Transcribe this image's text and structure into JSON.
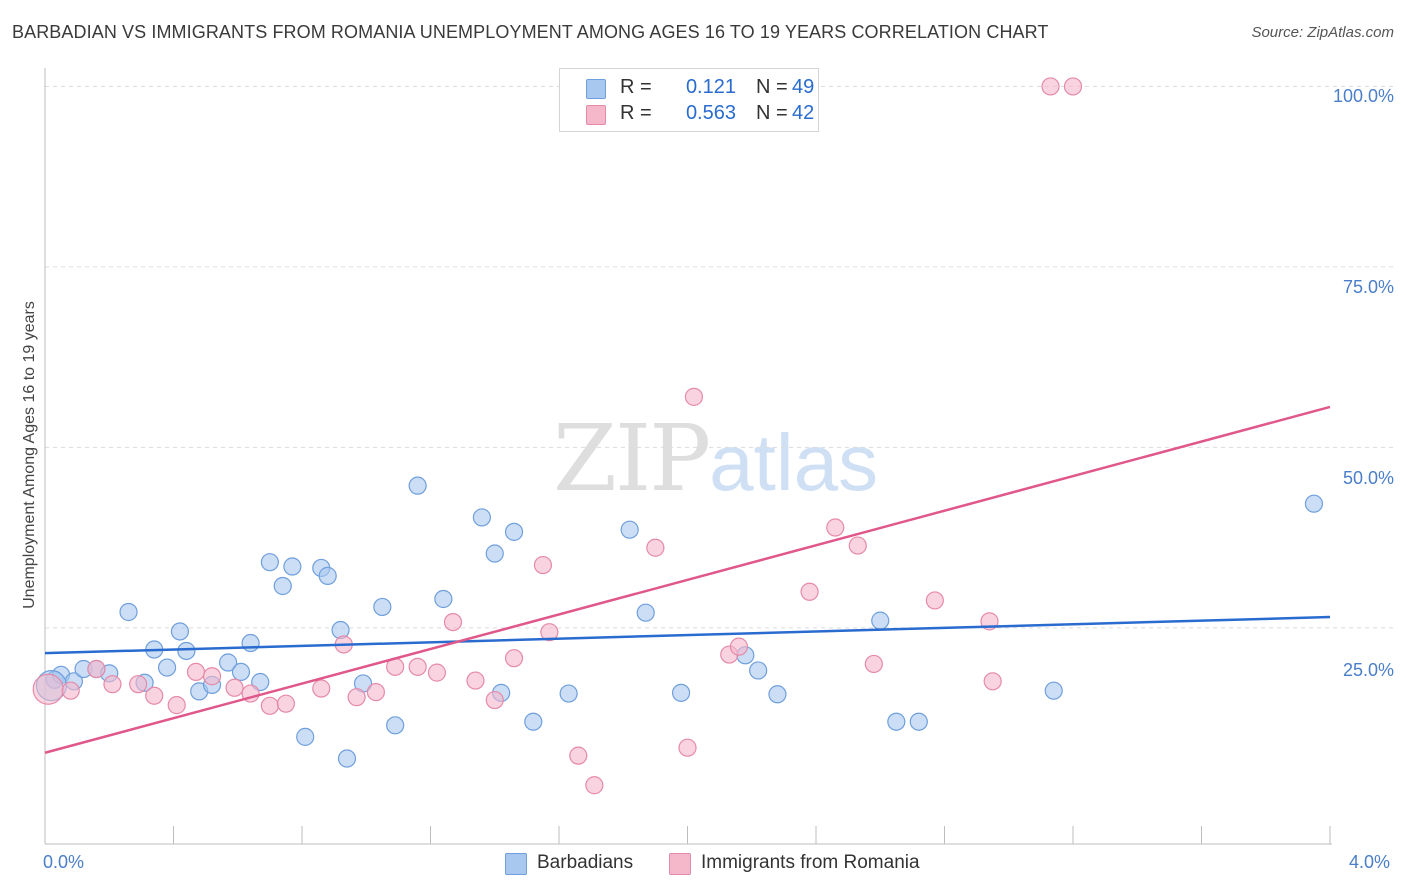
{
  "title": "BARBADIAN VS IMMIGRANTS FROM ROMANIA UNEMPLOYMENT AMONG AGES 16 TO 19 YEARS CORRELATION CHART",
  "source": "Source: ZipAtlas.com",
  "watermark": {
    "zip": "ZIP",
    "atlas": "atlas"
  },
  "legend_top": [
    {
      "r_label": "R =",
      "r_value": "0.121",
      "n_label": "N =",
      "n_value": "49",
      "color": "#a9c8f0"
    },
    {
      "r_label": "R =",
      "r_value": "0.563",
      "n_label": "N =",
      "n_value": "42",
      "color": "#f5b8cb"
    }
  ],
  "legend_bottom": [
    {
      "label": "Barbadians",
      "color": "#a9c8f0"
    },
    {
      "label": "Immigrants from Romania",
      "color": "#f5b8cb"
    }
  ],
  "colors": {
    "blue_line": "#2a6bcf",
    "pink_line": "#e0578a",
    "blue_fill": "#a9c8f0",
    "pink_fill": "#f5b8cb",
    "grid": "#dcdcdc"
  },
  "chart_data": {
    "type": "scatter",
    "title": "BARBADIAN VS IMMIGRANTS FROM ROMANIA UNEMPLOYMENT AMONG AGES 16 TO 19 YEARS CORRELATION CHART",
    "xlabel": "",
    "ylabel": "Unemployment Among Ages 16 to 19 years",
    "xlim": [
      0,
      4.0
    ],
    "ylim": [
      -3,
      102
    ],
    "x_tick_labels": [
      {
        "value": 0,
        "label": "0.0%"
      },
      {
        "value": 4.0,
        "label": "4.0%"
      }
    ],
    "y_tick_labels": [
      {
        "value": 100,
        "label": "100.0%"
      },
      {
        "value": 75,
        "label": "75.0%"
      },
      {
        "value": 50,
        "label": "50.0%"
      },
      {
        "value": 25,
        "label": "25.0%"
      }
    ],
    "y_gridlines": [
      100,
      75,
      50,
      25
    ],
    "series": [
      {
        "name": "Barbadians",
        "points": [
          [
            0.03,
            17.8
          ],
          [
            0.05,
            18.5
          ],
          [
            0.09,
            17.6
          ],
          [
            0.12,
            19.3
          ],
          [
            0.16,
            19.3
          ],
          [
            0.2,
            18.7
          ],
          [
            0.26,
            27.2
          ],
          [
            0.31,
            17.4
          ],
          [
            0.34,
            22.0
          ],
          [
            0.38,
            19.5
          ],
          [
            0.42,
            24.5
          ],
          [
            0.44,
            21.8
          ],
          [
            0.48,
            16.2
          ],
          [
            0.52,
            17.1
          ],
          [
            0.57,
            20.2
          ],
          [
            0.61,
            18.9
          ],
          [
            0.64,
            22.9
          ],
          [
            0.67,
            17.5
          ],
          [
            0.7,
            34.1
          ],
          [
            0.74,
            30.8
          ],
          [
            0.77,
            33.5
          ],
          [
            0.81,
            9.9
          ],
          [
            0.86,
            33.3
          ],
          [
            0.88,
            32.2
          ],
          [
            0.92,
            24.7
          ],
          [
            0.94,
            6.9
          ],
          [
            0.99,
            17.3
          ],
          [
            1.05,
            27.9
          ],
          [
            1.09,
            11.5
          ],
          [
            1.16,
            44.7
          ],
          [
            1.24,
            29.0
          ],
          [
            1.36,
            40.3
          ],
          [
            1.4,
            35.3
          ],
          [
            1.42,
            16.0
          ],
          [
            1.46,
            38.3
          ],
          [
            1.52,
            12.0
          ],
          [
            1.63,
            15.9
          ],
          [
            1.82,
            38.6
          ],
          [
            1.87,
            27.1
          ],
          [
            1.98,
            16.0
          ],
          [
            2.18,
            21.2
          ],
          [
            2.22,
            19.1
          ],
          [
            2.28,
            15.8
          ],
          [
            2.6,
            26.0
          ],
          [
            2.65,
            12.0
          ],
          [
            2.72,
            12.0
          ],
          [
            3.14,
            16.3
          ],
          [
            3.95,
            42.2
          ],
          [
            0.02,
            17.0
          ]
        ],
        "trend": {
          "x0": 0,
          "y0": 21.5,
          "x1": 4.0,
          "y1": 26.5
        }
      },
      {
        "name": "Immigrants from Romania",
        "points": [
          [
            0.01,
            16.5
          ],
          [
            0.08,
            16.3
          ],
          [
            0.16,
            19.3
          ],
          [
            0.21,
            17.2
          ],
          [
            0.29,
            17.2
          ],
          [
            0.34,
            15.6
          ],
          [
            0.41,
            14.3
          ],
          [
            0.47,
            18.9
          ],
          [
            0.52,
            18.3
          ],
          [
            0.59,
            16.7
          ],
          [
            0.64,
            15.9
          ],
          [
            0.7,
            14.2
          ],
          [
            0.75,
            14.5
          ],
          [
            0.86,
            16.6
          ],
          [
            0.93,
            22.7
          ],
          [
            0.97,
            15.4
          ],
          [
            1.03,
            16.1
          ],
          [
            1.09,
            19.6
          ],
          [
            1.16,
            19.6
          ],
          [
            1.22,
            18.8
          ],
          [
            1.27,
            25.8
          ],
          [
            1.34,
            17.7
          ],
          [
            1.4,
            15.0
          ],
          [
            1.46,
            20.8
          ],
          [
            1.55,
            33.7
          ],
          [
            1.57,
            24.4
          ],
          [
            1.66,
            7.3
          ],
          [
            1.71,
            3.2
          ],
          [
            1.9,
            36.1
          ],
          [
            2.0,
            8.4
          ],
          [
            2.02,
            57.0
          ],
          [
            2.13,
            21.3
          ],
          [
            2.16,
            22.4
          ],
          [
            2.38,
            30.0
          ],
          [
            2.46,
            38.9
          ],
          [
            2.53,
            36.4
          ],
          [
            2.58,
            20.0
          ],
          [
            2.77,
            28.8
          ],
          [
            2.94,
            25.9
          ],
          [
            2.95,
            17.6
          ],
          [
            3.13,
            100.0
          ],
          [
            3.2,
            100.0
          ]
        ],
        "trend": {
          "x0": 0,
          "y0": 7.7,
          "x1": 4.0,
          "y1": 55.6
        }
      }
    ]
  }
}
